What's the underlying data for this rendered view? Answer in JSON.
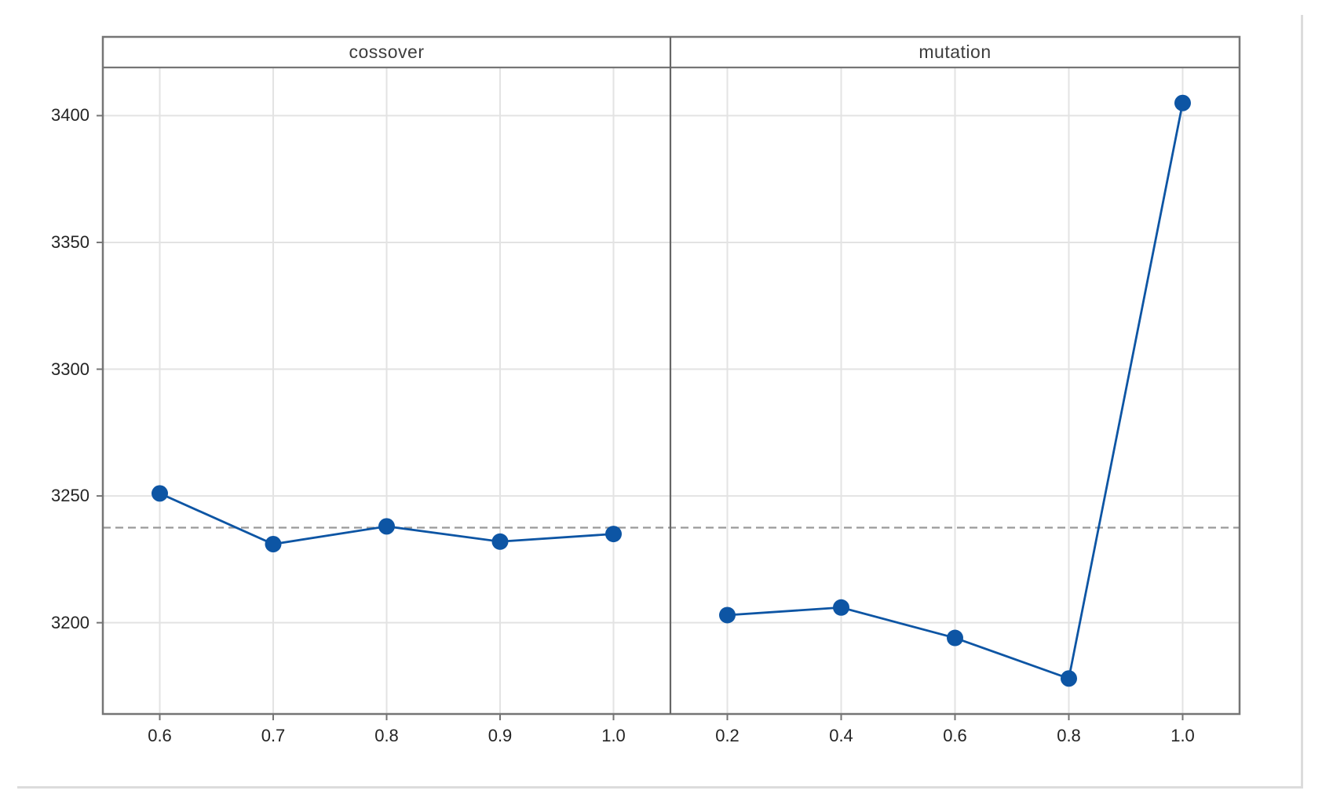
{
  "page": {
    "background": "#ffffff"
  },
  "chart_data": {
    "type": "line",
    "title": "",
    "subtitle": "",
    "legend": "none",
    "grid": true,
    "panels": [
      {
        "label": "cossover",
        "x": [
          0.6,
          0.7,
          0.8,
          0.9,
          1.0
        ],
        "x_tick_labels": [
          "0.6",
          "0.7",
          "0.8",
          "0.9",
          "1.0"
        ],
        "values": [
          3251,
          3231,
          3238,
          3232,
          3235
        ]
      },
      {
        "label": "mutation",
        "x": [
          0.2,
          0.4,
          0.6,
          0.8,
          1.0
        ],
        "x_tick_labels": [
          "0.2",
          "0.4",
          "0.6",
          "0.8",
          "1.0"
        ],
        "values": [
          3203,
          3206,
          3194,
          3178,
          3405
        ]
      }
    ],
    "y_ticks": [
      3200,
      3250,
      3300,
      3350,
      3400
    ],
    "y_tick_labels": [
      "3200",
      "3250",
      "3300",
      "3350",
      "3400"
    ],
    "ylim": [
      3164,
      3419
    ],
    "reference_line_y": 3237.5,
    "colors": {
      "series": "#0d55a4",
      "reference_line": "#9a9a9a",
      "gridline": "#e3e3e3",
      "frame": "#757575",
      "divider": "#666666",
      "tick_label": "#242424",
      "panel_title": "#3d3d3d"
    }
  }
}
